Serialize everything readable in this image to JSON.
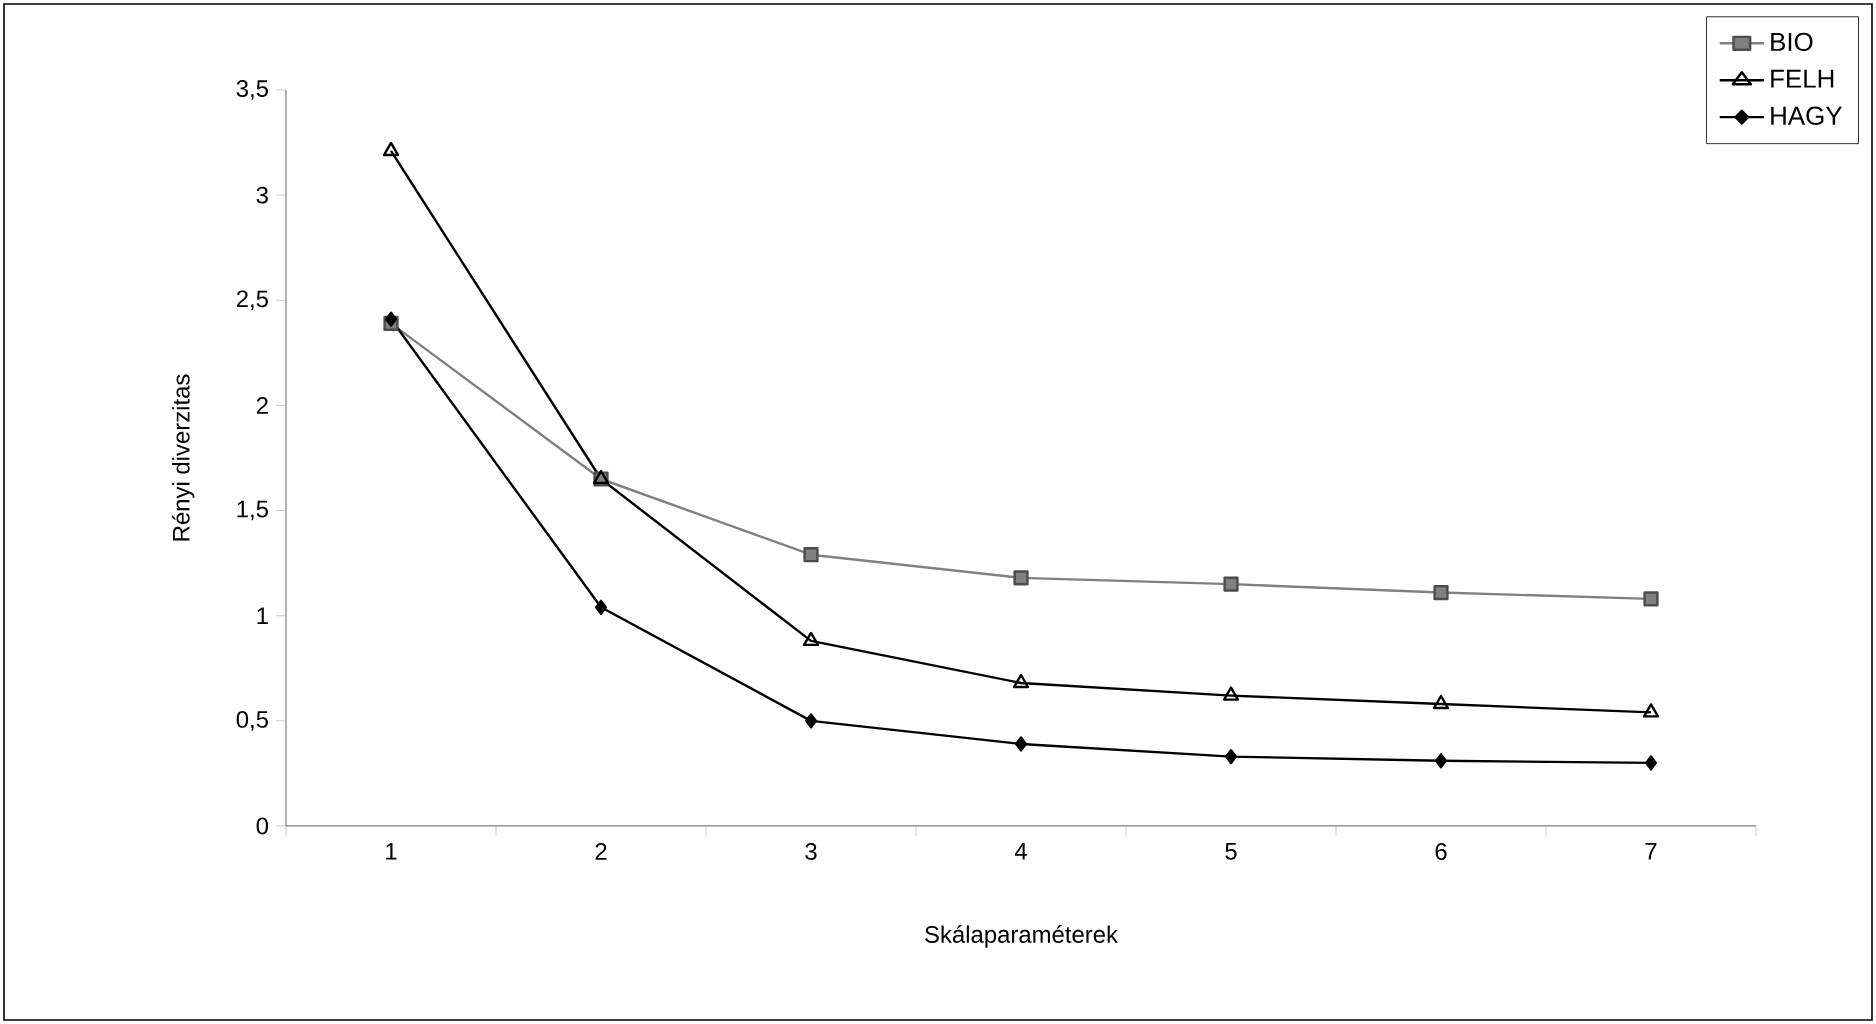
{
  "chart_data": {
    "type": "line",
    "xlabel": "Skálaparaméterek",
    "ylabel": "Rényi diverzitas",
    "categories": [
      "1",
      "2",
      "3",
      "4",
      "5",
      "6",
      "7"
    ],
    "ylim": [
      0,
      3.5
    ],
    "yticks": [
      {
        "value": 0,
        "label": "0"
      },
      {
        "value": 0.5,
        "label": "0,5"
      },
      {
        "value": 1,
        "label": "1"
      },
      {
        "value": 1.5,
        "label": "1,5"
      },
      {
        "value": 2,
        "label": "2"
      },
      {
        "value": 2.5,
        "label": "2,5"
      },
      {
        "value": 3,
        "label": "3"
      },
      {
        "value": 3.5,
        "label": "3,5"
      }
    ],
    "grid": false,
    "legend": "top right",
    "series": [
      {
        "name": "BIO",
        "color": "#808080",
        "marker": "square",
        "values": [
          2.39,
          1.65,
          1.29,
          1.18,
          1.15,
          1.11,
          1.08
        ]
      },
      {
        "name": "FELH",
        "color": "#000000",
        "marker": "triangle",
        "values": [
          3.21,
          1.65,
          0.88,
          0.68,
          0.62,
          0.58,
          0.54
        ]
      },
      {
        "name": "HAGY",
        "color": "#000000",
        "marker": "diamond",
        "values": [
          2.41,
          1.04,
          0.5,
          0.39,
          0.33,
          0.31,
          0.3
        ]
      }
    ]
  }
}
